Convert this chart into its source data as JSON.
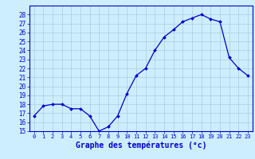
{
  "hours": [
    0,
    1,
    2,
    3,
    4,
    5,
    6,
    7,
    8,
    9,
    10,
    11,
    12,
    13,
    14,
    15,
    16,
    17,
    18,
    19,
    20,
    21,
    22,
    23
  ],
  "temps": [
    16.7,
    17.8,
    18.0,
    18.0,
    17.5,
    17.5,
    16.7,
    15.0,
    15.5,
    16.7,
    19.2,
    21.2,
    22.0,
    24.0,
    25.5,
    26.3,
    27.2,
    27.6,
    28.0,
    27.5,
    27.2,
    23.2,
    22.0,
    21.2
  ],
  "xlabel": "Graphe des températures (°c)",
  "ylim": [
    15,
    29
  ],
  "xlim": [
    -0.5,
    23.5
  ],
  "yticks": [
    15,
    16,
    17,
    18,
    19,
    20,
    21,
    22,
    23,
    24,
    25,
    26,
    27,
    28
  ],
  "xticks": [
    0,
    1,
    2,
    3,
    4,
    5,
    6,
    7,
    8,
    9,
    10,
    11,
    12,
    13,
    14,
    15,
    16,
    17,
    18,
    19,
    20,
    21,
    22,
    23
  ],
  "line_color": "#0000cc",
  "marker": "D",
  "marker_size": 2.0,
  "bg_color": "#cceeff",
  "grid_color": "#aaccdd",
  "axes_label_color": "#0000cc",
  "tick_label_color": "#0000cc",
  "xlabel_fontsize": 7.0,
  "ytick_fontsize": 5.5,
  "xtick_fontsize": 5.0,
  "linewidth": 0.9
}
